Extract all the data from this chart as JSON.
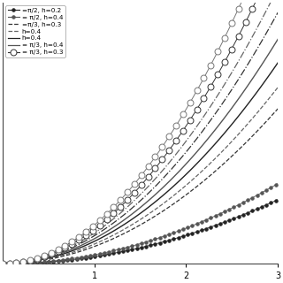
{
  "background_color": "#ffffff",
  "xlim": [
    0,
    3.0
  ],
  "ylim": [
    0,
    2.2
  ],
  "xticks": [
    1,
    2,
    3
  ],
  "legend_labels": [
    "=π/2, h=0.2",
    "= π/2, h=0.4",
    "=π/3, h=0.3",
    "h=0.4",
    "h=0.4",
    "= π/3, h=0.4",
    "= π/3, h=0.3"
  ],
  "series": [
    {
      "ls": "-",
      "color": "#222222",
      "marker": "o",
      "msize": 2.5,
      "lw": 0.6,
      "scale": 0.06,
      "exp": 2.0,
      "filled": true,
      "marker_every": 2
    },
    {
      "ls": "-",
      "color": "#555555",
      "marker": "o",
      "msize": 2.5,
      "lw": 0.6,
      "scale": 0.075,
      "exp": 2.0,
      "filled": true,
      "marker_every": 2
    },
    {
      "ls": "--",
      "color": "#333333",
      "marker": null,
      "msize": 0,
      "lw": 0.9,
      "scale": 0.145,
      "exp": 2.0,
      "filled": false,
      "marker_every": 1
    },
    {
      "ls": "--",
      "color": "#666666",
      "marker": null,
      "msize": 0,
      "lw": 0.9,
      "scale": 0.165,
      "exp": 2.0,
      "filled": false,
      "marker_every": 1
    },
    {
      "ls": "-",
      "color": "#222222",
      "marker": null,
      "msize": 0,
      "lw": 1.0,
      "scale": 0.188,
      "exp": 2.0,
      "filled": false,
      "marker_every": 1
    },
    {
      "ls": "-",
      "color": "#555555",
      "marker": null,
      "msize": 0,
      "lw": 1.0,
      "scale": 0.21,
      "exp": 2.0,
      "filled": false,
      "marker_every": 1
    },
    {
      "ls": "-.",
      "color": "#333333",
      "marker": null,
      "msize": 0,
      "lw": 0.9,
      "scale": 0.235,
      "exp": 2.0,
      "filled": false,
      "marker_every": 1
    },
    {
      "ls": "-.",
      "color": "#666666",
      "marker": null,
      "msize": 0,
      "lw": 0.9,
      "scale": 0.258,
      "exp": 2.0,
      "filled": false,
      "marker_every": 1
    },
    {
      "ls": "-",
      "color": "#333333",
      "marker": "o",
      "msize": 5.0,
      "lw": 0.7,
      "scale": 0.29,
      "exp": 2.0,
      "filled": false,
      "marker_every": 3
    },
    {
      "ls": "-",
      "color": "#777777",
      "marker": "o",
      "msize": 5.0,
      "lw": 0.7,
      "scale": 0.325,
      "exp": 2.0,
      "filled": false,
      "marker_every": 3
    }
  ]
}
